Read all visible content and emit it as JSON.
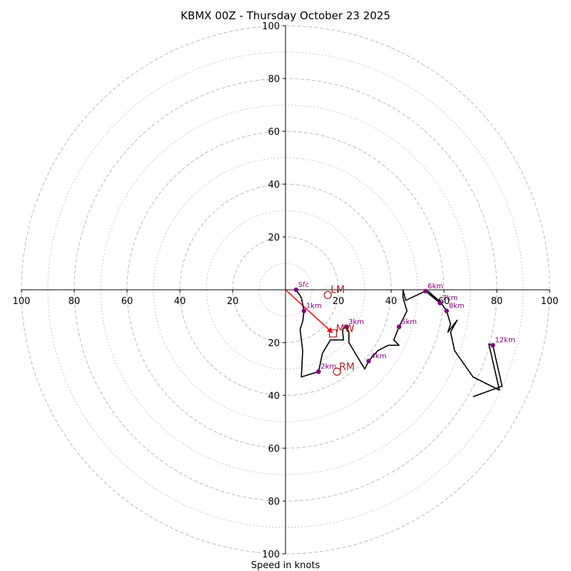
{
  "chart_data": {
    "type": "hodograph",
    "title": "KBMX 00Z - Thursday October 23 2025",
    "xlabel": "Speed in knots",
    "units": "knots",
    "range": [
      -100,
      100
    ],
    "tick_values": [
      20,
      40,
      60,
      80,
      100
    ],
    "tick_labels": [
      "20",
      "40",
      "60",
      "80",
      "100"
    ],
    "rings_major": [
      20,
      40,
      60,
      80,
      100
    ],
    "rings_minor": [
      10,
      30,
      50,
      70,
      90
    ],
    "colors": {
      "trace": "#000000",
      "height_marker": "#800080",
      "storm_motion": "#b22222",
      "mean_wind_vector": "#ff0000",
      "ring": "#bbbbbb",
      "axis": "#000000"
    },
    "trace": [
      {
        "u": 4,
        "v": 0
      },
      {
        "u": 6,
        "v": -3
      },
      {
        "u": 7,
        "v": -8
      },
      {
        "u": 6.5,
        "v": -12
      },
      {
        "u": 5.5,
        "v": -15
      },
      {
        "u": 6.5,
        "v": -23
      },
      {
        "u": 6,
        "v": -33
      },
      {
        "u": 12.5,
        "v": -31
      },
      {
        "u": 14,
        "v": -24
      },
      {
        "u": 17,
        "v": -19
      },
      {
        "u": 22,
        "v": -19
      },
      {
        "u": 21.5,
        "v": -15
      },
      {
        "u": 23,
        "v": -14
      },
      {
        "u": 24,
        "v": -16
      },
      {
        "u": 24,
        "v": -20
      },
      {
        "u": 30,
        "v": -30
      },
      {
        "u": 31.5,
        "v": -27
      },
      {
        "u": 35,
        "v": -23
      },
      {
        "u": 39,
        "v": -21
      },
      {
        "u": 43,
        "v": -21
      },
      {
        "u": 41,
        "v": -19
      },
      {
        "u": 43,
        "v": -14
      },
      {
        "u": 46,
        "v": -8
      },
      {
        "u": 44.5,
        "v": -3
      },
      {
        "u": 44.5,
        "v": 0
      },
      {
        "u": 45.5,
        "v": -4
      },
      {
        "u": 53,
        "v": -0.5
      },
      {
        "u": 58.5,
        "v": -5
      },
      {
        "u": 54,
        "v": -0.5
      },
      {
        "u": 58.5,
        "v": -4.5
      },
      {
        "u": 61,
        "v": -8
      },
      {
        "u": 62.5,
        "v": -13
      },
      {
        "u": 61.5,
        "v": -16
      },
      {
        "u": 65,
        "v": -11.5
      },
      {
        "u": 62.5,
        "v": -16
      },
      {
        "u": 64,
        "v": -23
      },
      {
        "u": 71,
        "v": -33
      },
      {
        "u": 81,
        "v": -38
      },
      {
        "u": 77,
        "v": -20.5
      },
      {
        "u": 78.5,
        "v": -21
      },
      {
        "u": 82,
        "v": -36.5
      },
      {
        "u": 71,
        "v": -40.5
      }
    ],
    "height_markers": [
      {
        "label": "Sfc",
        "u": 4,
        "v": 0
      },
      {
        "label": "1km",
        "u": 7,
        "v": -8
      },
      {
        "label": "2km",
        "u": 12.5,
        "v": -31
      },
      {
        "label": "3km",
        "u": 23,
        "v": -14
      },
      {
        "label": "4km",
        "u": 31.5,
        "v": -27
      },
      {
        "label": "5km",
        "u": 43,
        "v": -14
      },
      {
        "label": "6km",
        "u": 53,
        "v": -0.5
      },
      {
        "label": "7km",
        "u": 58.5,
        "v": -5
      },
      {
        "label": "8km",
        "u": 61,
        "v": -8
      },
      {
        "label": "12km",
        "u": 78.5,
        "v": -21
      }
    ],
    "storm_motion": {
      "mean_wind": {
        "label": "MW",
        "u": 18,
        "v": -16.5
      },
      "left_mover": {
        "label": "LM",
        "u": 16,
        "v": -2
      },
      "right_mover": {
        "label": "RM",
        "u": 19.5,
        "v": -31
      }
    }
  }
}
